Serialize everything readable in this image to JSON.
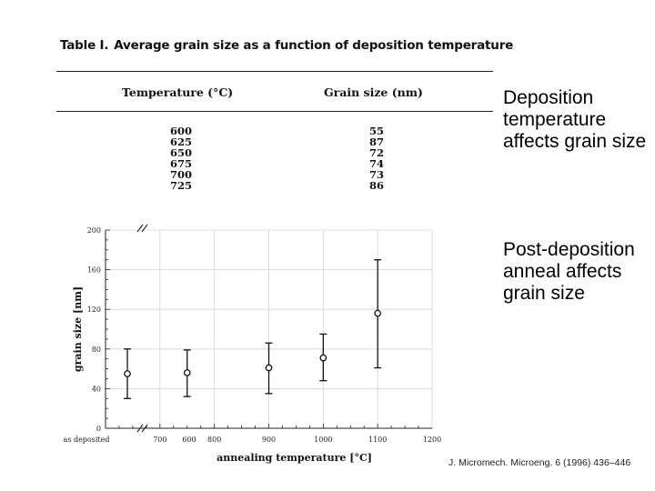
{
  "table": {
    "label": "Table I.",
    "title": "Average grain size as a function of deposition temperature",
    "headers": {
      "temperature": "Temperature (°C)",
      "grain": "Grain size (nm)"
    },
    "rows": [
      {
        "temperature": "600",
        "grain": "55"
      },
      {
        "temperature": "625",
        "grain": "87"
      },
      {
        "temperature": "650",
        "grain": "72"
      },
      {
        "temperature": "675",
        "grain": "74"
      },
      {
        "temperature": "700",
        "grain": "73"
      },
      {
        "temperature": "725",
        "grain": "86"
      }
    ]
  },
  "chart_data": {
    "type": "scatter",
    "title": "",
    "xlabel": "annealing temperature [°C]",
    "ylabel": "grain size [nm]",
    "xlim": [
      600,
      1200
    ],
    "ylim": [
      0,
      200
    ],
    "x_tick_labels": [
      "as deposited",
      "600",
      "700",
      "800",
      "900",
      "1000",
      "1100",
      "1200"
    ],
    "x_tick_values": [
      600,
      700,
      800,
      900,
      1000,
      1100,
      1200
    ],
    "y_tick_labels": [
      "0",
      "40",
      "80",
      "120",
      "160",
      "200"
    ],
    "y_tick_values": [
      0,
      40,
      80,
      120,
      160,
      200
    ],
    "grid": true,
    "axis_break": true,
    "series": [
      {
        "name": "grain size",
        "points": [
          {
            "label": "as deposited",
            "y": 55,
            "ymin": 30,
            "ymax": 80
          },
          {
            "x": 750,
            "y": 56,
            "ymin": 32,
            "ymax": 79
          },
          {
            "x": 900,
            "y": 61,
            "ymin": 35,
            "ymax": 86
          },
          {
            "x": 1000,
            "y": 71,
            "ymin": 48,
            "ymax": 95
          },
          {
            "x": 1100,
            "y": 116,
            "ymin": 61,
            "ymax": 170
          }
        ]
      }
    ]
  },
  "bullets": [
    "Deposition temperature affects grain size",
    "Post-deposition anneal affects grain size"
  ],
  "citation": "J. Micromech. Microeng. 6 (1996) 436–446"
}
